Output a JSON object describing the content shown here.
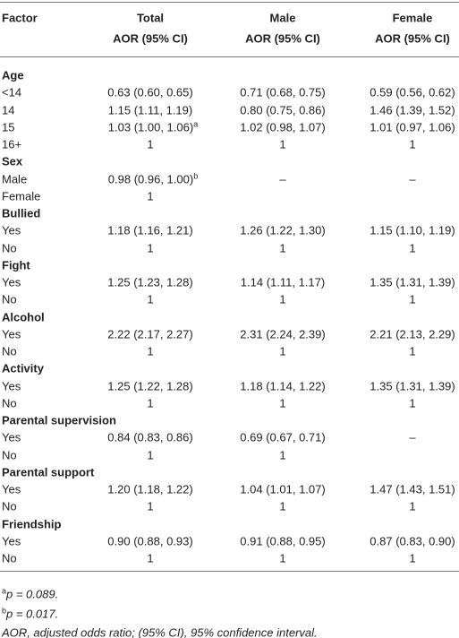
{
  "header": {
    "factor": "Factor",
    "columns": [
      {
        "name": "Total",
        "sub": "AOR (95% CI)"
      },
      {
        "name": "Male",
        "sub": "AOR (95% CI)"
      },
      {
        "name": "Female",
        "sub": "AOR (95% CI)"
      }
    ]
  },
  "groups": [
    {
      "name": "Age",
      "rows": [
        {
          "label": "<14",
          "values": [
            "0.63 (0.60, 0.65)",
            "0.71 (0.68, 0.75)",
            "0.59 (0.56, 0.62)"
          ]
        },
        {
          "label": "14",
          "values": [
            "1.15 (1.11, 1.19)",
            "0.80 (0.75, 0.86)",
            "1.46 (1.39, 1.52)"
          ]
        },
        {
          "label": "15",
          "values": [
            {
              "text": "1.03 (1.00, 1.06)",
              "sup": "a"
            },
            "1.02 (0.98, 1.07)",
            "1.01 (0.97, 1.06)"
          ]
        },
        {
          "label": "16+",
          "values": [
            "1",
            "1",
            "1"
          ]
        }
      ]
    },
    {
      "name": "Sex",
      "rows": [
        {
          "label": "Male",
          "values": [
            {
              "text": "0.98 (0.96, 1.00)",
              "sup": "b"
            },
            "–",
            "–"
          ]
        },
        {
          "label": "Female",
          "values": [
            "1",
            null,
            null
          ]
        }
      ]
    },
    {
      "name": "Bullied",
      "rows": [
        {
          "label": "Yes",
          "values": [
            "1.18 (1.16, 1.21)",
            "1.26 (1.22, 1.30)",
            "1.15 (1.10, 1.19)"
          ]
        },
        {
          "label": "No",
          "values": [
            "1",
            "1",
            "1"
          ]
        }
      ]
    },
    {
      "name": "Fight",
      "rows": [
        {
          "label": "Yes",
          "values": [
            "1.25 (1.23, 1.28)",
            "1.14 (1.11, 1.17)",
            "1.35 (1.31, 1.39)"
          ]
        },
        {
          "label": "No",
          "values": [
            "1",
            "1",
            "1"
          ]
        }
      ]
    },
    {
      "name": "Alcohol",
      "rows": [
        {
          "label": "Yes",
          "values": [
            "2.22 (2.17, 2.27)",
            "2.31 (2.24, 2.39)",
            "2.21 (2.13, 2.29)"
          ]
        },
        {
          "label": "No",
          "values": [
            "1",
            "1",
            "1"
          ]
        }
      ]
    },
    {
      "name": "Activity",
      "rows": [
        {
          "label": "Yes",
          "values": [
            "1.25 (1.22, 1.28)",
            "1.18 (1.14, 1.22)",
            "1.35 (1.31, 1.39)"
          ]
        },
        {
          "label": "No",
          "values": [
            "1",
            "1",
            "1"
          ]
        }
      ]
    },
    {
      "name": "Parental supervision",
      "rows": [
        {
          "label": "Yes",
          "values": [
            "0.84 (0.83, 0.86)",
            "0.69 (0.67, 0.71)",
            "–"
          ]
        },
        {
          "label": "No",
          "values": [
            "1",
            "1",
            null
          ]
        }
      ]
    },
    {
      "name": "Parental support",
      "rows": [
        {
          "label": "Yes",
          "values": [
            "1.20 (1.18, 1.22)",
            "1.04 (1.01, 1.07)",
            "1.47 (1.43, 1.51)"
          ]
        },
        {
          "label": "No",
          "values": [
            "1",
            "1",
            "1"
          ]
        }
      ]
    },
    {
      "name": "Friendship",
      "rows": [
        {
          "label": "Yes",
          "values": [
            "0.90 (0.88, 0.93)",
            "0.91 (0.88, 0.95)",
            "0.87 (0.83, 0.90)"
          ]
        },
        {
          "label": "No",
          "values": [
            "1",
            "1",
            "1"
          ]
        }
      ]
    }
  ],
  "footnotes": [
    {
      "mark": "a",
      "text": "p = 0.089."
    },
    {
      "mark": "b",
      "text": "p = 0.017."
    },
    {
      "text": "AOR, adjusted odds ratio; (95% CI), 95% confidence interval."
    }
  ]
}
